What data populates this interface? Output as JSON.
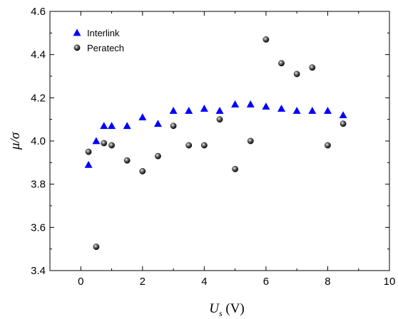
{
  "chart_data": {
    "type": "scatter",
    "xlim": [
      -1,
      10
    ],
    "ylim": [
      3.4,
      4.6
    ],
    "x_ticks": [
      0,
      2,
      4,
      6,
      8,
      10
    ],
    "x_tick_labels": [
      "0",
      "2",
      "4",
      "6",
      "8",
      "10"
    ],
    "y_ticks": [
      3.4,
      3.6,
      3.8,
      4.0,
      4.2,
      4.4,
      4.6
    ],
    "y_tick_labels": [
      "3.4",
      "3.6",
      "3.8",
      "4.0",
      "4.2",
      "4.4",
      "4.6"
    ],
    "x_minor_step": 1,
    "y_minor_step": 0.1,
    "xlabel": {
      "var": "U",
      "sub": "s",
      "unit": " (V)"
    },
    "ylabel": "μ/σ",
    "grid": false,
    "legend_position": "top-left",
    "series": [
      {
        "name": "Interlink",
        "marker": "triangle",
        "color": "#0000ff",
        "x": [
          0.25,
          0.5,
          0.75,
          1.0,
          1.5,
          2.0,
          2.5,
          3.0,
          3.5,
          4.0,
          4.5,
          5.0,
          5.5,
          6.0,
          6.5,
          7.0,
          7.5,
          8.0,
          8.5
        ],
        "y": [
          3.89,
          4.0,
          4.07,
          4.07,
          4.07,
          4.11,
          4.08,
          4.14,
          4.14,
          4.15,
          4.14,
          4.17,
          4.17,
          4.16,
          4.15,
          4.14,
          4.14,
          4.14,
          4.12
        ]
      },
      {
        "name": "Peratech",
        "marker": "sphere",
        "color": "#000000",
        "x": [
          0.25,
          0.5,
          0.75,
          1.0,
          1.5,
          2.0,
          2.5,
          3.0,
          3.5,
          4.0,
          4.5,
          5.0,
          5.5,
          6.0,
          6.5,
          7.0,
          7.5,
          8.0,
          8.5
        ],
        "y": [
          3.95,
          3.51,
          3.99,
          3.98,
          3.91,
          3.86,
          3.93,
          4.07,
          3.98,
          3.98,
          4.1,
          3.87,
          4.0,
          4.47,
          4.36,
          4.31,
          4.34,
          3.98,
          4.08
        ]
      }
    ]
  }
}
